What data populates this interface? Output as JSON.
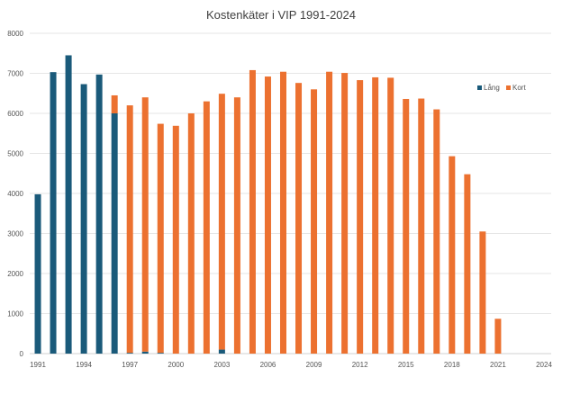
{
  "chart_data": {
    "type": "bar",
    "stacked": true,
    "title": "Kostenkäter i VIP 1991-2024",
    "xlabel": "",
    "ylabel": "",
    "ylim": [
      0,
      8000
    ],
    "yticks": [
      0,
      1000,
      2000,
      3000,
      4000,
      5000,
      6000,
      7000,
      8000
    ],
    "grid": true,
    "legend": "right, upper",
    "categories": [
      1991,
      1992,
      1993,
      1994,
      1995,
      1996,
      1997,
      1998,
      1999,
      2000,
      2001,
      2002,
      2003,
      2004,
      2005,
      2006,
      2007,
      2008,
      2009,
      2010,
      2011,
      2012,
      2013,
      2014,
      2015,
      2016,
      2017,
      2018,
      2019,
      2020,
      2021,
      2022,
      2023,
      2024
    ],
    "xtick_labels": [
      "1991",
      "1994",
      "1997",
      "2000",
      "2003",
      "2006",
      "2009",
      "2012",
      "2015",
      "2018",
      "2021",
      "2024"
    ],
    "series": [
      {
        "name": "Lång",
        "color": "#1a5a7a",
        "values": [
          3980,
          7030,
          7450,
          6730,
          6970,
          6000,
          20,
          50,
          20,
          0,
          0,
          0,
          100,
          0,
          0,
          0,
          0,
          0,
          0,
          0,
          0,
          0,
          0,
          0,
          0,
          0,
          0,
          0,
          0,
          0,
          0,
          0,
          0,
          0
        ]
      },
      {
        "name": "Kort",
        "color": "#ec7130",
        "values": [
          0,
          0,
          0,
          0,
          0,
          450,
          6180,
          6350,
          5720,
          5690,
          6000,
          6300,
          6390,
          6400,
          7080,
          6920,
          7040,
          6760,
          6600,
          7040,
          7010,
          6830,
          6900,
          6890,
          6360,
          6370,
          6100,
          4930,
          4480,
          3050,
          870,
          0,
          0,
          0
        ]
      }
    ]
  }
}
